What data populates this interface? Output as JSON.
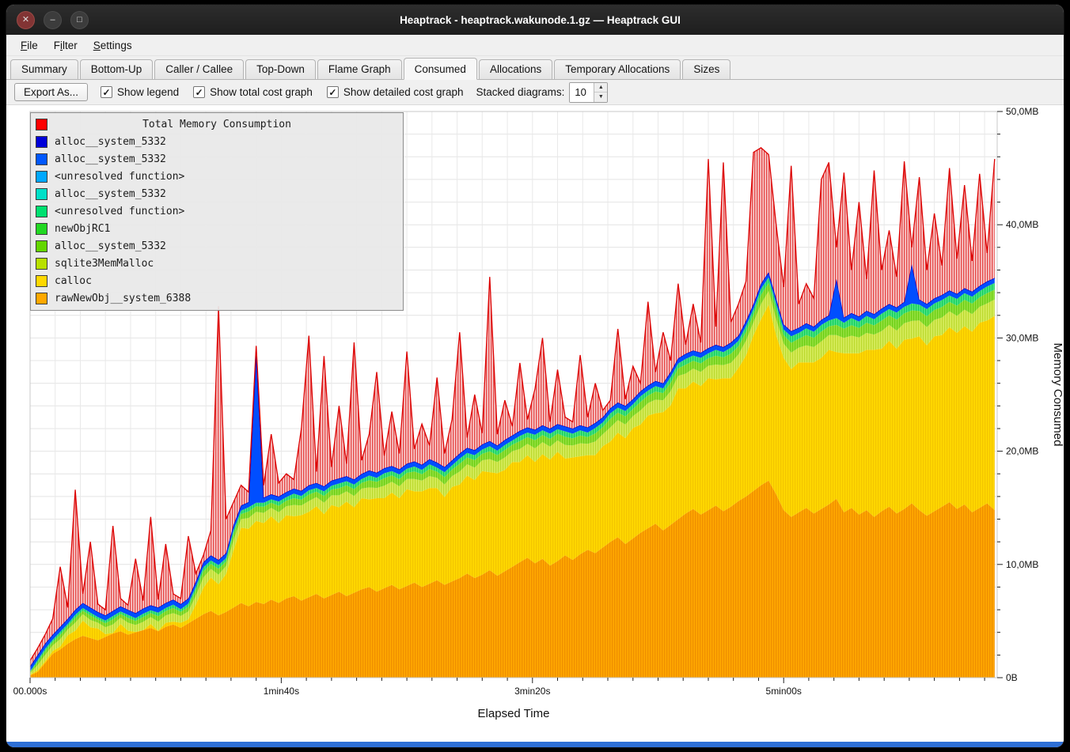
{
  "window": {
    "title": "Heaptrack - heaptrack.wakunode.1.gz — Heaptrack GUI",
    "controls": [
      {
        "name": "close",
        "glyph": "✕"
      },
      {
        "name": "minimize",
        "glyph": "–"
      },
      {
        "name": "maximize",
        "glyph": "□"
      }
    ]
  },
  "menubar": {
    "items": [
      {
        "label": "File",
        "u": 0
      },
      {
        "label": "Filter",
        "u": 1
      },
      {
        "label": "Settings",
        "u": 0
      }
    ]
  },
  "tabs": [
    {
      "label": "Summary",
      "active": false
    },
    {
      "label": "Bottom-Up",
      "active": false
    },
    {
      "label": "Caller / Callee",
      "active": false
    },
    {
      "label": "Top-Down",
      "active": false
    },
    {
      "label": "Flame Graph",
      "active": false
    },
    {
      "label": "Consumed",
      "active": true
    },
    {
      "label": "Allocations",
      "active": false
    },
    {
      "label": "Temporary Allocations",
      "active": false
    },
    {
      "label": "Sizes",
      "active": false
    }
  ],
  "toolbar": {
    "export_label": "Export As...",
    "checkboxes": [
      {
        "label": "Show legend",
        "checked": true
      },
      {
        "label": "Show total cost graph",
        "checked": true
      },
      {
        "label": "Show detailed cost graph",
        "checked": true
      }
    ],
    "stacked_label": "Stacked diagrams:",
    "stacked_value": "10"
  },
  "chart_data": {
    "type": "area",
    "title": "Total Memory Consumption",
    "xlabel": "Elapsed Time",
    "ylabel": "Memory Consumed",
    "xlim": [
      0,
      385
    ],
    "ylim": [
      0,
      50
    ],
    "x_minor": 10,
    "y_minor": 2,
    "x_ticks": [
      {
        "t": 0,
        "label": "00.000s"
      },
      {
        "t": 100,
        "label": "1min40s"
      },
      {
        "t": 200,
        "label": "3min20s"
      },
      {
        "t": 300,
        "label": "5min00s"
      }
    ],
    "y_ticks": [
      {
        "v": 0,
        "label": "0B"
      },
      {
        "v": 10,
        "label": "10,0MB"
      },
      {
        "v": 20,
        "label": "20,0MB"
      },
      {
        "v": 30,
        "label": "30,0MB"
      },
      {
        "v": 40,
        "label": "40,0MB"
      },
      {
        "v": 50,
        "label": "50,0MB"
      }
    ],
    "legend_title_color": "#ff0000",
    "legend": [
      {
        "label": "alloc__system_5332",
        "color": "#0000d8"
      },
      {
        "label": "alloc__system_5332",
        "color": "#0057ff"
      },
      {
        "label": "<unresolved function>",
        "color": "#00a8ff"
      },
      {
        "label": "alloc__system_5332",
        "color": "#00e0c8"
      },
      {
        "label": "<unresolved function>",
        "color": "#00e070"
      },
      {
        "label": "newObjRC1",
        "color": "#22d822"
      },
      {
        "label": "alloc__system_5332",
        "color": "#63d600"
      },
      {
        "label": "sqlite3MemMalloc",
        "color": "#b8e000"
      },
      {
        "label": "calloc",
        "color": "#ffd800"
      },
      {
        "label": "rawNewObj__system_6388",
        "color": "#ffa800"
      }
    ],
    "colors": {
      "orange": "#ffa800",
      "yellow": "#ffd800",
      "ygreen": "#d6ec5a",
      "green": "#93e03c",
      "spring": "#49e283",
      "blue": "#004eff",
      "darkblue": "#0008cc",
      "red": "#dc0000"
    },
    "series": {
      "t_step": 3,
      "orange_top": [
        0.2,
        0.5,
        1.3,
        2.1,
        2.5,
        3.0,
        3.4,
        3.7,
        3.5,
        3.3,
        3.6,
        3.9,
        4.1,
        3.8,
        4.0,
        4.2,
        4.4,
        4.1,
        4.5,
        4.7,
        4.4,
        4.8,
        5.2,
        5.6,
        5.9,
        5.5,
        5.8,
        6.2,
        6.6,
        6.3,
        6.7,
        6.5,
        6.9,
        6.6,
        7.0,
        7.2,
        6.8,
        7.1,
        7.4,
        7.0,
        7.3,
        7.6,
        7.2,
        7.5,
        7.8,
        8.0,
        7.6,
        7.9,
        8.2,
        7.8,
        8.1,
        8.4,
        8.0,
        8.3,
        8.6,
        8.2,
        8.5,
        8.8,
        9.2,
        8.8,
        9.1,
        9.5,
        9.0,
        9.4,
        9.8,
        10.2,
        10.6,
        10.1,
        10.5,
        9.9,
        10.3,
        10.8,
        10.4,
        10.9,
        11.3,
        11.0,
        11.5,
        12.0,
        12.4,
        11.8,
        12.3,
        12.8,
        13.2,
        13.6,
        13.0,
        13.5,
        14.0,
        14.5,
        14.9,
        14.4,
        14.8,
        15.2,
        14.7,
        15.1,
        15.6,
        16.0,
        16.5,
        17.0,
        17.4,
        16.2,
        14.8,
        14.2,
        14.6,
        15.0,
        14.5,
        14.9,
        15.3,
        15.8,
        14.6,
        15.0,
        14.4,
        14.8,
        14.2,
        14.7,
        15.1,
        14.5,
        14.9,
        15.4,
        14.8,
        14.3,
        14.7,
        15.1,
        15.5,
        14.9,
        15.3,
        14.6,
        15.0,
        15.4,
        14.8
      ],
      "stack_top": [
        1.0,
        2.0,
        3.0,
        3.8,
        4.5,
        5.2,
        6.0,
        6.6,
        6.2,
        5.8,
        5.5,
        5.9,
        6.3,
        6.0,
        5.7,
        6.1,
        6.4,
        6.2,
        6.6,
        6.9,
        6.5,
        7.0,
        8.5,
        10.2,
        10.8,
        10.4,
        11.0,
        13.5,
        15.2,
        15.5,
        28.8,
        15.9,
        16.2,
        16.0,
        16.4,
        16.7,
        16.5,
        17.0,
        17.2,
        16.9,
        17.4,
        17.6,
        17.8,
        17.5,
        18.0,
        18.3,
        18.1,
        18.5,
        18.7,
        18.4,
        18.9,
        19.1,
        18.8,
        19.3,
        19.0,
        18.6,
        19.2,
        19.8,
        20.3,
        20.1,
        20.6,
        20.9,
        20.5,
        21.0,
        21.4,
        21.8,
        22.1,
        21.9,
        22.3,
        22.0,
        22.4,
        22.2,
        22.0,
        22.3,
        22.1,
        22.5,
        23.0,
        23.8,
        24.3,
        24.0,
        24.6,
        25.3,
        25.8,
        26.2,
        26.0,
        27.0,
        28.2,
        28.6,
        28.9,
        28.7,
        29.1,
        29.4,
        29.2,
        29.6,
        30.2,
        31.5,
        33.0,
        34.8,
        35.8,
        33.5,
        31.2,
        30.6,
        30.9,
        31.3,
        31.0,
        31.6,
        32.0,
        35.2,
        31.8,
        32.2,
        31.9,
        32.4,
        32.1,
        32.6,
        33.0,
        32.7,
        33.2,
        36.5,
        33.4,
        33.0,
        33.5,
        33.8,
        34.2,
        33.9,
        34.4,
        34.1,
        34.6,
        35.0,
        35.3
      ],
      "green_band": [
        0.3,
        0.9,
        1.1,
        1.0,
        1.3,
        1.0,
        1.4,
        1.1,
        1.3,
        1.0,
        1.2,
        1.5,
        1.1,
        1.4,
        1.2,
        1.5,
        1.2,
        1.6,
        1.3,
        1.5,
        1.2,
        1.4,
        1.6,
        1.8,
        1.5,
        1.7,
        1.4,
        1.8,
        1.5,
        1.9,
        1.6,
        1.8,
        1.5,
        1.9,
        1.6,
        2.0,
        1.7,
        1.9,
        1.6,
        2.0,
        1.7,
        2.1,
        1.8,
        2.0,
        1.7,
        2.1,
        1.8,
        2.2,
        1.9,
        2.1,
        1.8,
        2.2,
        1.9,
        2.1,
        1.8,
        2.2,
        1.9,
        2.3,
        2.0,
        2.2,
        1.9,
        2.3,
        2.0,
        2.2,
        1.9,
        2.3,
        2.0,
        2.4,
        2.1,
        2.3,
        2.0,
        2.4,
        2.1,
        2.3,
        2.0,
        2.4,
        2.1,
        2.5,
        2.2,
        2.4,
        2.1,
        2.5,
        2.2,
        2.4,
        2.1,
        2.5,
        2.2,
        2.6,
        2.3,
        2.5,
        2.2,
        2.6,
        2.3,
        2.7,
        2.4,
        2.6,
        2.3,
        2.7,
        2.4,
        2.8,
        2.5,
        2.9,
        2.6,
        3.0,
        2.7,
        2.9,
        2.6,
        3.0,
        2.7,
        3.1,
        2.8,
        3.0,
        2.7,
        3.1,
        2.8,
        3.2,
        2.9,
        3.1,
        2.8,
        3.2,
        2.9,
        3.1,
        2.8,
        3.0,
        2.9,
        3.1,
        2.8,
        3.0,
        2.9
      ],
      "blue_spikes": {
        "30": 12.9,
        "107": 3.0,
        "117": 3.0
      },
      "total": [
        1.5,
        2.6,
        3.8,
        5.2,
        9.8,
        6.2,
        16.6,
        7.4,
        12.0,
        6.5,
        6.0,
        13.4,
        7.0,
        6.4,
        10.5,
        6.8,
        14.2,
        6.9,
        11.8,
        7.4,
        7.0,
        12.5,
        9.2,
        10.8,
        13.0,
        32.8,
        14.0,
        15.5,
        17.0,
        16.4,
        29.3,
        17.0,
        21.5,
        17.2,
        18.0,
        17.5,
        22.0,
        30.2,
        18.2,
        28.4,
        18.6,
        24.0,
        18.9,
        29.6,
        19.2,
        21.5,
        27.0,
        19.6,
        23.5,
        19.8,
        28.8,
        20.2,
        22.4,
        20.5,
        26.5,
        19.8,
        22.8,
        30.5,
        21.2,
        25.0,
        21.6,
        35.4,
        21.5,
        24.5,
        22.2,
        27.8,
        22.8,
        25.5,
        30.0,
        22.6,
        27.2,
        23.0,
        22.6,
        28.5,
        23.0,
        26.0,
        23.6,
        24.5,
        30.8,
        24.6,
        27.5,
        26.0,
        33.2,
        27.0,
        30.5,
        28.0,
        34.8,
        29.4,
        33.0,
        29.6,
        45.8,
        31.0,
        45.5,
        31.4,
        33.0,
        35.0,
        46.4,
        46.8,
        46.2,
        40.0,
        34.5,
        45.2,
        33.0,
        34.8,
        33.5,
        44.0,
        45.5,
        38.0,
        44.6,
        36.0,
        42.0,
        35.2,
        44.8,
        36.0,
        39.5,
        35.4,
        45.6,
        38.0,
        44.2,
        36.0,
        41.0,
        36.4,
        45.0,
        37.0,
        43.5,
        36.8,
        44.5,
        37.5,
        45.8
      ]
    }
  }
}
